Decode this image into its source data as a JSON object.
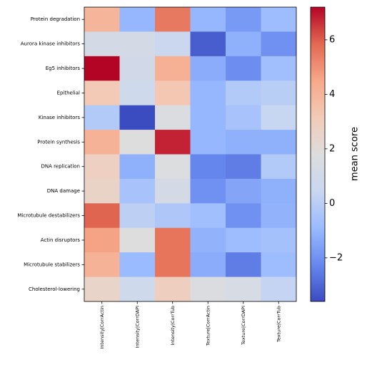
{
  "chart_data": {
    "type": "heatmap",
    "x_categories": [
      "Intensity|CorrActin",
      "Intensity|CorrDAPI",
      "Intensity|CorrTub",
      "Texture|CorrActin",
      "Texture|CorrDAPI",
      "Texture|CorrTub"
    ],
    "y_categories": [
      "Protein degradation",
      "Aurora kinase inhibitors",
      "Eg5 inhibitors",
      "Epithelial",
      "Kinase inhibitors",
      "Protein synthesis",
      "DNA replication",
      "DNA damage",
      "Microtubule destabilizers",
      "Actin disruptors",
      "Microtubule stabilizers",
      "Cholesterol-lowering"
    ],
    "values": [
      [
        4.0,
        -1.0,
        5.5,
        -1.0,
        -1.8,
        -0.8
      ],
      [
        1.2,
        1.2,
        0.5,
        -3.2,
        -1.2,
        -2.0
      ],
      [
        7.2,
        1.0,
        4.2,
        -1.3,
        -2.1,
        -0.7
      ],
      [
        3.2,
        0.8,
        3.3,
        -1.0,
        -0.2,
        0.0
      ],
      [
        -0.2,
        -3.6,
        1.6,
        -1.0,
        -0.5,
        0.4
      ],
      [
        4.1,
        1.8,
        6.8,
        -1.0,
        -1.2,
        -1.2
      ],
      [
        2.8,
        -1.2,
        1.7,
        -2.3,
        -2.5,
        -0.2
      ],
      [
        2.6,
        -0.5,
        1.2,
        -2.0,
        -1.5,
        -1.2
      ],
      [
        5.9,
        0.1,
        -0.3,
        -0.7,
        -2.0,
        -1.1
      ],
      [
        4.6,
        1.8,
        5.6,
        -1.1,
        -0.8,
        -0.6
      ],
      [
        4.1,
        -0.9,
        5.6,
        -1.3,
        -2.5,
        -0.8
      ],
      [
        2.5,
        0.8,
        2.9,
        1.6,
        1.3,
        0.3
      ]
    ],
    "colorbar_label": "mean score",
    "clim": [
      -3.6,
      7.2
    ],
    "cticks": [
      {
        "value": -2,
        "label": "−2"
      },
      0,
      2,
      4,
      6
    ],
    "colormap": [
      "#3b4cc0",
      "#6788ee",
      "#9abbff",
      "#c9d7f0",
      "#dddddd",
      "#f2cbb7",
      "#f7a889",
      "#e26952",
      "#b40426"
    ]
  }
}
